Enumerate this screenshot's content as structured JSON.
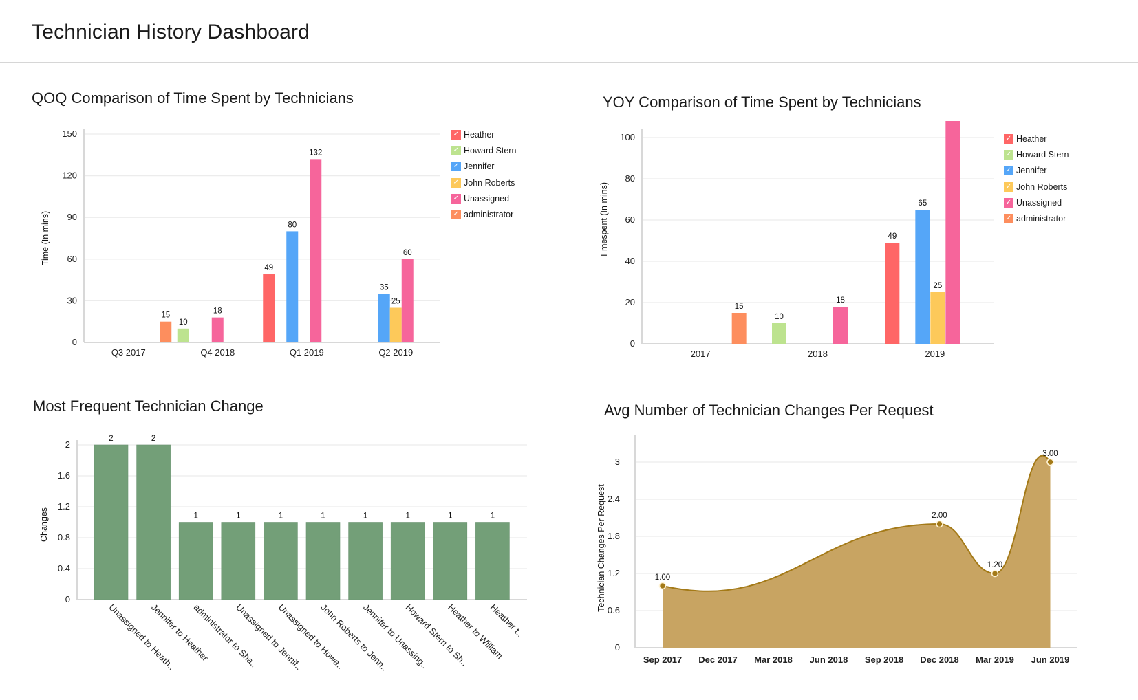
{
  "header": {
    "title": "Technician History Dashboard"
  },
  "legend_series": [
    {
      "name": "Heather",
      "color": "#ff6666"
    },
    {
      "name": "Howard Stern",
      "color": "#bde38f"
    },
    {
      "name": "Jennifer",
      "color": "#55a6f8"
    },
    {
      "name": "John Roberts",
      "color": "#fdc95a"
    },
    {
      "name": "Unassigned",
      "color": "#f6659b"
    },
    {
      "name": "administrator",
      "color": "#fd8e5e"
    }
  ],
  "check_glyph": "✓",
  "chart_data": [
    {
      "id": "qoq",
      "type": "bar",
      "title": "QOQ Comparison of Time Spent by Technicians",
      "xlabel": "",
      "ylabel": "Time (In mins)",
      "ylim": [
        0,
        150
      ],
      "yticks": [
        "0",
        "30",
        "60",
        "90",
        "120",
        "150"
      ],
      "grid": true,
      "legend": "right",
      "categories": [
        "Q3 2017",
        "Q4 2018",
        "Q1 2019",
        "Q2 2019"
      ],
      "series": [
        {
          "name": "Heather",
          "values": [
            null,
            null,
            49,
            null
          ]
        },
        {
          "name": "Howard Stern",
          "values": [
            null,
            10,
            null,
            null
          ]
        },
        {
          "name": "Jennifer",
          "values": [
            null,
            null,
            80,
            35
          ]
        },
        {
          "name": "John Roberts",
          "values": [
            null,
            null,
            null,
            25
          ]
        },
        {
          "name": "Unassigned",
          "values": [
            null,
            18,
            132,
            60
          ]
        },
        {
          "name": "administrator",
          "values": [
            15,
            null,
            null,
            null
          ]
        }
      ]
    },
    {
      "id": "yoy",
      "type": "bar",
      "title": "YOY Comparison of Time Spent by Technicians",
      "xlabel": "",
      "ylabel": "Timespent (In mins)",
      "ylim": [
        0,
        120
      ],
      "yticks": [
        "0",
        "20",
        "40",
        "60",
        "80",
        "100"
      ],
      "grid": true,
      "legend": "right",
      "categories": [
        "2017",
        "2018",
        "2019"
      ],
      "series": [
        {
          "name": "Heather",
          "values": [
            null,
            null,
            49
          ]
        },
        {
          "name": "Howard Stern",
          "values": [
            null,
            10,
            null
          ]
        },
        {
          "name": "Jennifer",
          "values": [
            null,
            null,
            65
          ]
        },
        {
          "name": "John Roberts",
          "values": [
            null,
            null,
            25
          ]
        },
        {
          "name": "Unassigned",
          "values": [
            null,
            18,
            108
          ]
        },
        {
          "name": "administrator",
          "values": [
            15,
            null,
            null
          ]
        }
      ]
    },
    {
      "id": "freq",
      "type": "bar",
      "title": "Most Frequent Technician Change",
      "xlabel": "",
      "ylabel": "Changes",
      "ylim": [
        0,
        2.4
      ],
      "yticks": [
        "0",
        "0.4",
        "0.8",
        "1.2",
        "1.6",
        "2"
      ],
      "grid": true,
      "legend": "none",
      "color": "#739f78",
      "categories": [
        "Unassigned to Heath..",
        "Jennifer to Heather",
        "administrator to Sha..",
        "Unassigned to Jennif..",
        "Unassigned to Howa..",
        "John Roberts to Jenn..",
        "Jennifer to Unassing..",
        "Howard Stern to Sh..",
        "Heather to William",
        "Heather t.."
      ],
      "values": [
        2,
        2,
        1,
        1,
        1,
        1,
        1,
        1,
        1,
        1
      ]
    },
    {
      "id": "avg",
      "type": "area",
      "title": "Avg Number of Technician Changes Per Request",
      "xlabel": "",
      "ylabel": "Technician Changes Per Request",
      "ylim": [
        0,
        3.4
      ],
      "yticks": [
        "0",
        "0.6",
        "1.2",
        "1.8",
        "2.4",
        "3"
      ],
      "grid": true,
      "legend": "none",
      "color": "#c8a462",
      "line_color": "#a47a18",
      "x": [
        "Sep 2017",
        "Dec 2017",
        "Mar 2018",
        "Jun 2018",
        "Sep 2018",
        "Dec 2018",
        "Mar 2019",
        "Jun 2019"
      ],
      "points": [
        {
          "x": "Sep 2017",
          "y": 1.0,
          "label": "1.00"
        },
        {
          "x": "Dec 2018",
          "y": 2.0,
          "label": "2.00"
        },
        {
          "x": "Mar 2019",
          "y": 1.2,
          "label": "1.20"
        },
        {
          "x": "Jun 2019",
          "y": 3.0,
          "label": "3.00"
        }
      ]
    }
  ]
}
